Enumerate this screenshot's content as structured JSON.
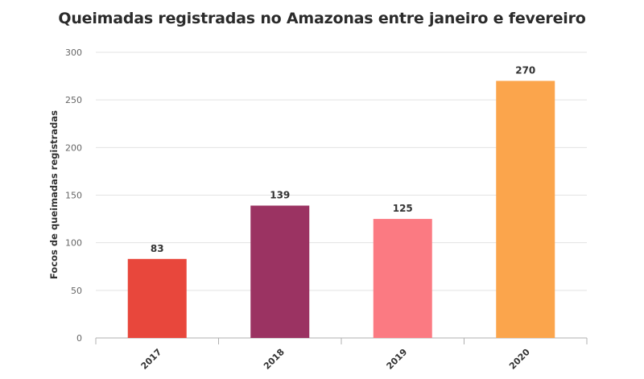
{
  "chart_data": {
    "type": "bar",
    "title": "Queimadas registradas no Amazonas entre janeiro e fevereiro",
    "xlabel": "",
    "ylabel": "Focos de queimadas registradas",
    "categories": [
      "2017",
      "2018",
      "2019",
      "2020"
    ],
    "values": [
      83,
      139,
      125,
      270
    ],
    "data_labels": [
      "83",
      "139",
      "125",
      "270"
    ],
    "colors": [
      "#e8473c",
      "#9b3362",
      "#fb7a82",
      "#fba54c"
    ],
    "ylim": [
      0,
      300
    ],
    "yticks": [
      0,
      50,
      100,
      150,
      200,
      250,
      300
    ],
    "ytick_labels": [
      "0",
      "50",
      "100",
      "150",
      "200",
      "250",
      "300"
    ],
    "grid": true,
    "legend": "none"
  }
}
